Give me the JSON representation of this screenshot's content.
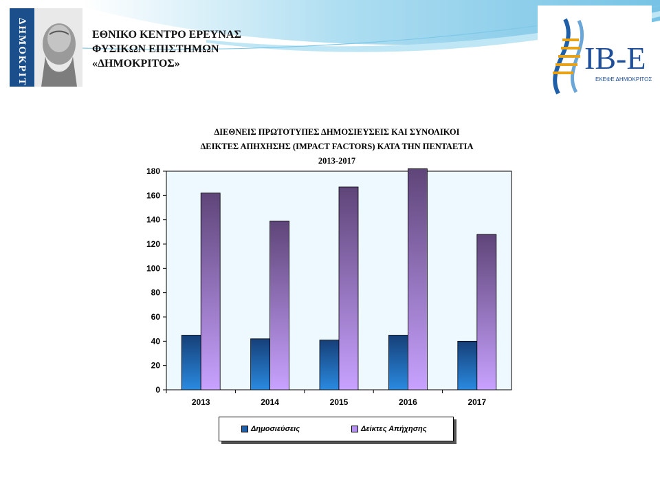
{
  "header": {
    "institute_line1": "ΕΘΝΙΚΟ ΚΕΝΤΡΟ ΕΡΕΥΝΑΣ",
    "institute_line2": "ΦΥΣΙΚΩΝ ΕΠΙΣΤΗΜΩΝ",
    "institute_line3": "«ΔΗΜΟΚΡΙΤΟΣ»",
    "left_logo_text": "ΔΗΜΟΚΡΙΤΟΣ",
    "right_logo_text": "IB-E",
    "right_logo_subtext": "ΕΚΕΦΕ ΔΗΜΟΚΡΙΤΟΣ"
  },
  "colors": {
    "series1": "#1f5fa8",
    "series2": "#b48ff0",
    "plot_bg": "#eef8ff",
    "swoosh": "#7cc6e6"
  },
  "chart_data": {
    "type": "bar",
    "title_lines": [
      "ΔΙΕΘΝΕΙΣ ΠΡΩΤΟΤΥΠΕΣ ΔΗΜΟΣΙΕΥΣΕΙΣ ΚΑΙ ΣΥΝΟΛΙΚΟΙ",
      "ΔΕΙΚΤΕΣ ΑΠΗΧΗΣΗΣ (IMPACT FACTORS) ΚΑΤΑ ΤΗΝ ΠΕΝΤΑΕΤΙΑ",
      "2013-2017"
    ],
    "categories": [
      "2013",
      "2014",
      "2015",
      "2016",
      "2017"
    ],
    "series": [
      {
        "name": "Δημοσιεύσεις",
        "values": [
          45,
          42,
          41,
          45,
          40
        ]
      },
      {
        "name": "Δείκτες Απήχησης",
        "values": [
          162,
          139,
          167,
          182,
          128
        ]
      }
    ],
    "ylim": [
      0,
      180
    ],
    "yticks": [
      0,
      20,
      40,
      60,
      80,
      100,
      120,
      140,
      160,
      180
    ],
    "grid": false,
    "legend_position": "bottom"
  }
}
